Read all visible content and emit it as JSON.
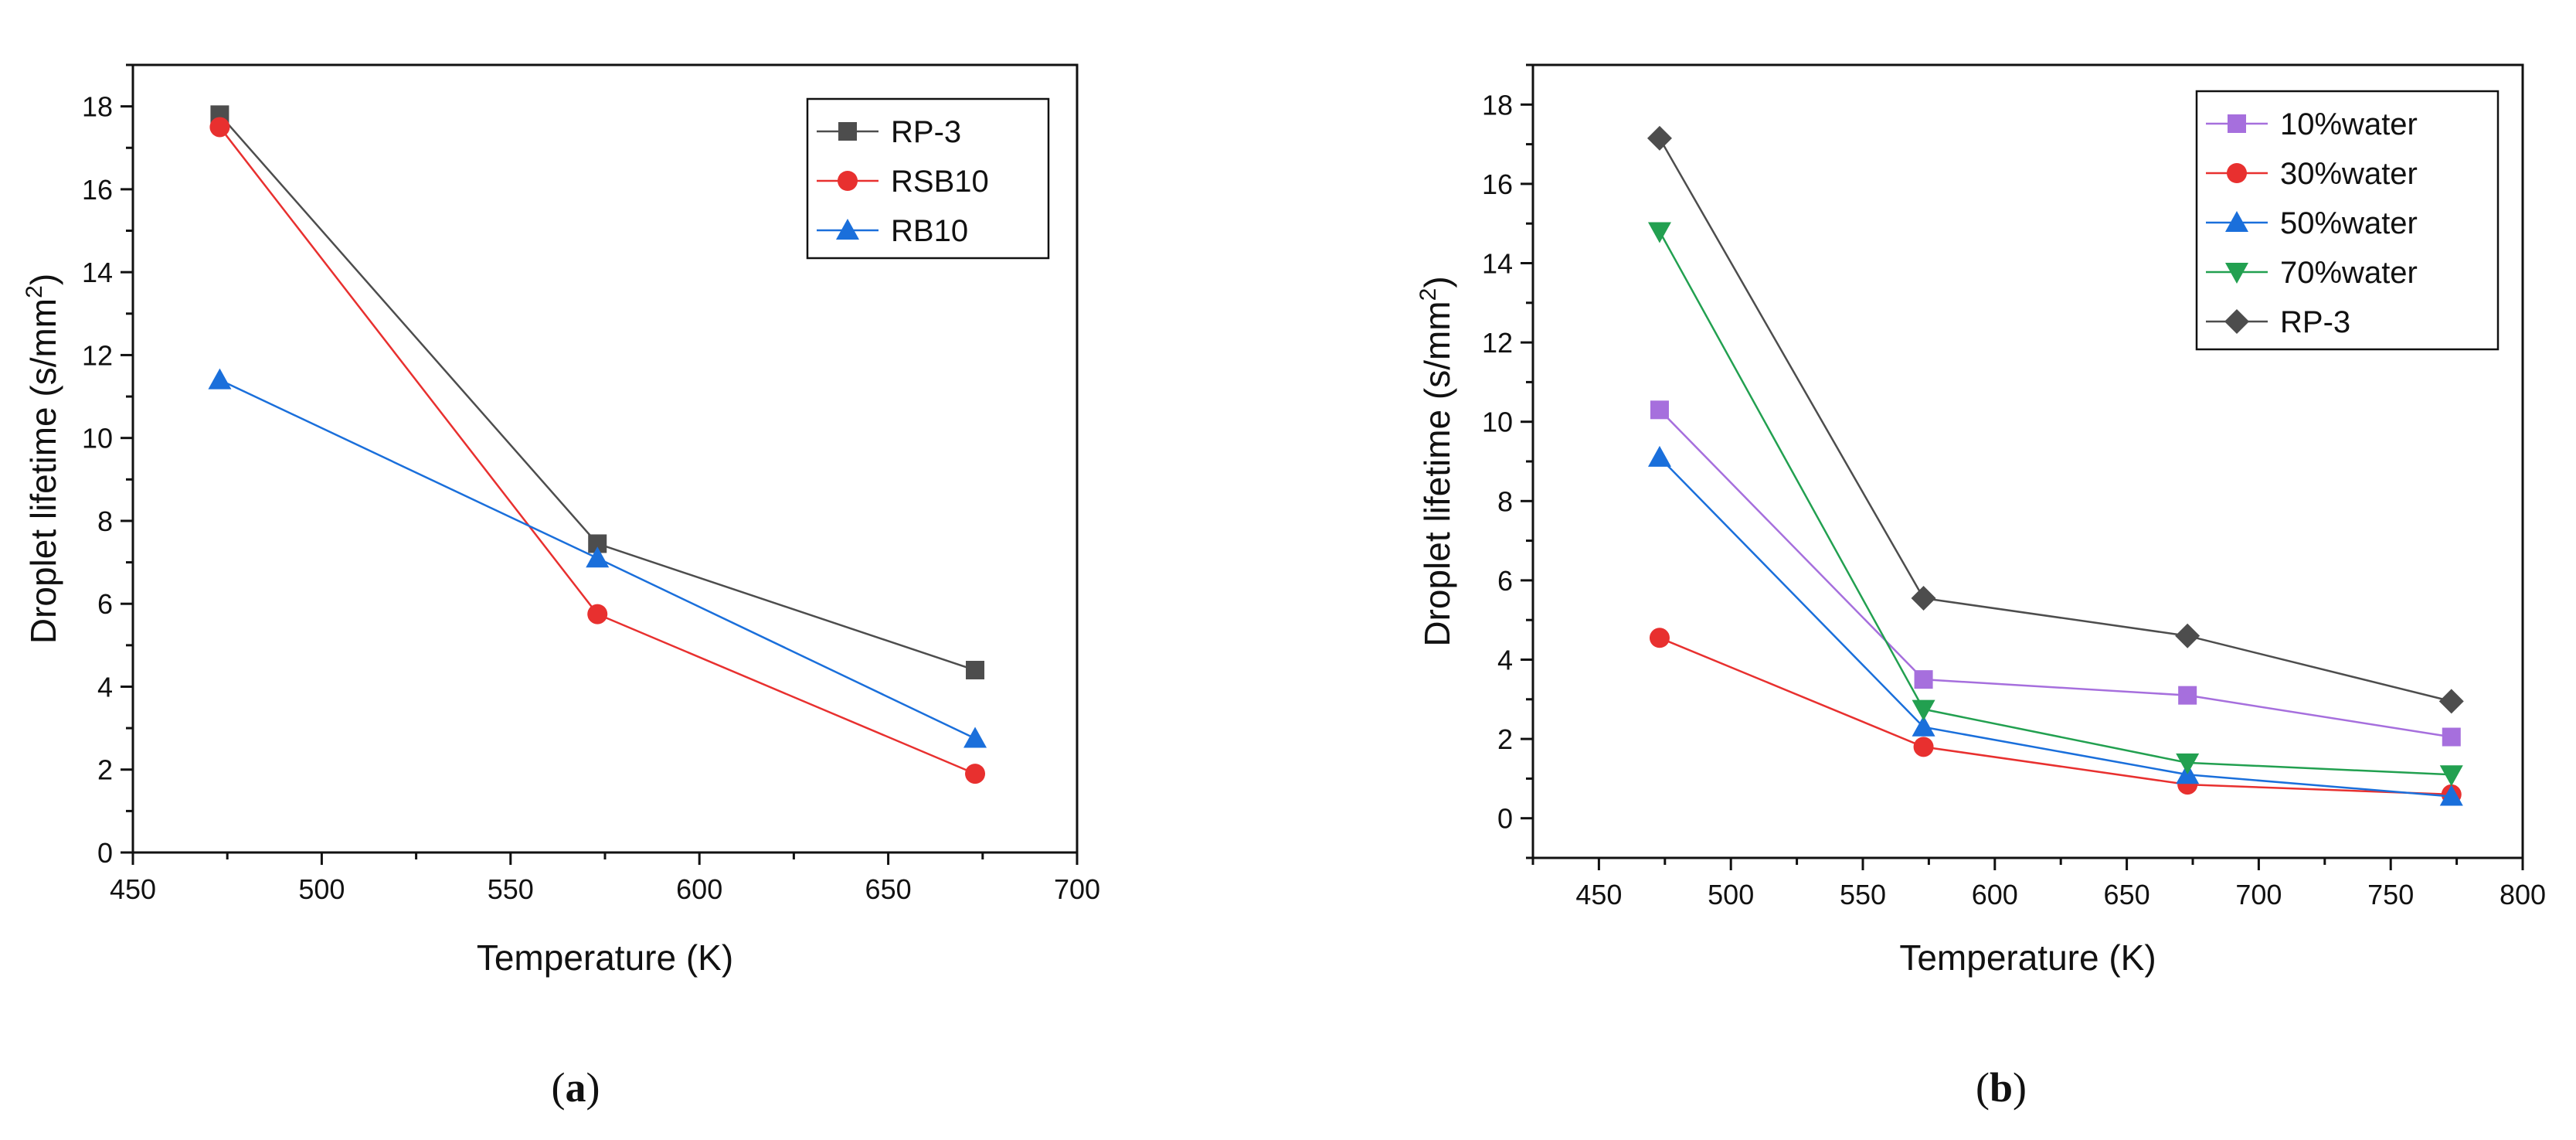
{
  "chart_data": [
    {
      "type": "line",
      "panel_label": "a",
      "title": "",
      "xlabel": "Temperature (K)",
      "ylabel": "Droplet lifetime (s/mm²)",
      "ylabel_main": "Droplet lifetime (s/mm",
      "ylabel_sup": "2",
      "ylabel_end": ")",
      "xlim": [
        450,
        700
      ],
      "ylim": [
        0,
        19
      ],
      "xticks": [
        450,
        500,
        550,
        600,
        650,
        700
      ],
      "yticks": [
        0,
        2,
        4,
        6,
        8,
        10,
        12,
        14,
        16,
        18
      ],
      "grid": false,
      "legend_position": "top-right",
      "series": [
        {
          "name": "RP-3",
          "color": "#4d4d4d",
          "marker": "square",
          "x": [
            473,
            573,
            673
          ],
          "values": [
            17.8,
            7.45,
            4.4
          ]
        },
        {
          "name": "RSB10",
          "color": "#e8302f",
          "marker": "circle",
          "x": [
            473,
            573,
            673
          ],
          "values": [
            17.5,
            5.75,
            1.9
          ]
        },
        {
          "name": "RB10",
          "color": "#1a6fdb",
          "marker": "triangle-up",
          "x": [
            473,
            573,
            673
          ],
          "values": [
            11.4,
            7.1,
            2.75
          ]
        }
      ]
    },
    {
      "type": "line",
      "panel_label": "b",
      "title": "",
      "xlabel": "Temperature (K)",
      "ylabel": "Droplet lifetime (s/mm²)",
      "ylabel_main": "Droplet lifetime (s/mm",
      "ylabel_sup": "2",
      "ylabel_end": ")",
      "xlim": [
        425,
        800
      ],
      "ylim": [
        -1,
        19
      ],
      "xticks": [
        450,
        500,
        550,
        600,
        650,
        700,
        750,
        800
      ],
      "yticks": [
        0,
        2,
        4,
        6,
        8,
        10,
        12,
        14,
        16,
        18
      ],
      "grid": false,
      "legend_position": "top-right",
      "series": [
        {
          "name": "10%water",
          "color": "#a66fdd",
          "marker": "square",
          "x": [
            473,
            573,
            673,
            773
          ],
          "values": [
            10.3,
            3.5,
            3.1,
            2.05
          ]
        },
        {
          "name": "30%water",
          "color": "#e8302f",
          "marker": "circle",
          "x": [
            473,
            573,
            673,
            773
          ],
          "values": [
            4.55,
            1.8,
            0.85,
            0.6
          ]
        },
        {
          "name": "50%water",
          "color": "#1a6fdb",
          "marker": "triangle-up",
          "x": [
            473,
            573,
            673,
            773
          ],
          "values": [
            9.1,
            2.3,
            1.1,
            0.55
          ]
        },
        {
          "name": "70%water",
          "color": "#22a050",
          "marker": "triangle-down",
          "x": [
            473,
            573,
            673,
            773
          ],
          "values": [
            14.8,
            2.75,
            1.4,
            1.1
          ]
        },
        {
          "name": "RP-3",
          "color": "#4d4d4d",
          "marker": "diamond",
          "x": [
            473,
            573,
            673,
            773
          ],
          "values": [
            17.15,
            5.55,
            4.6,
            2.95
          ]
        }
      ]
    }
  ]
}
